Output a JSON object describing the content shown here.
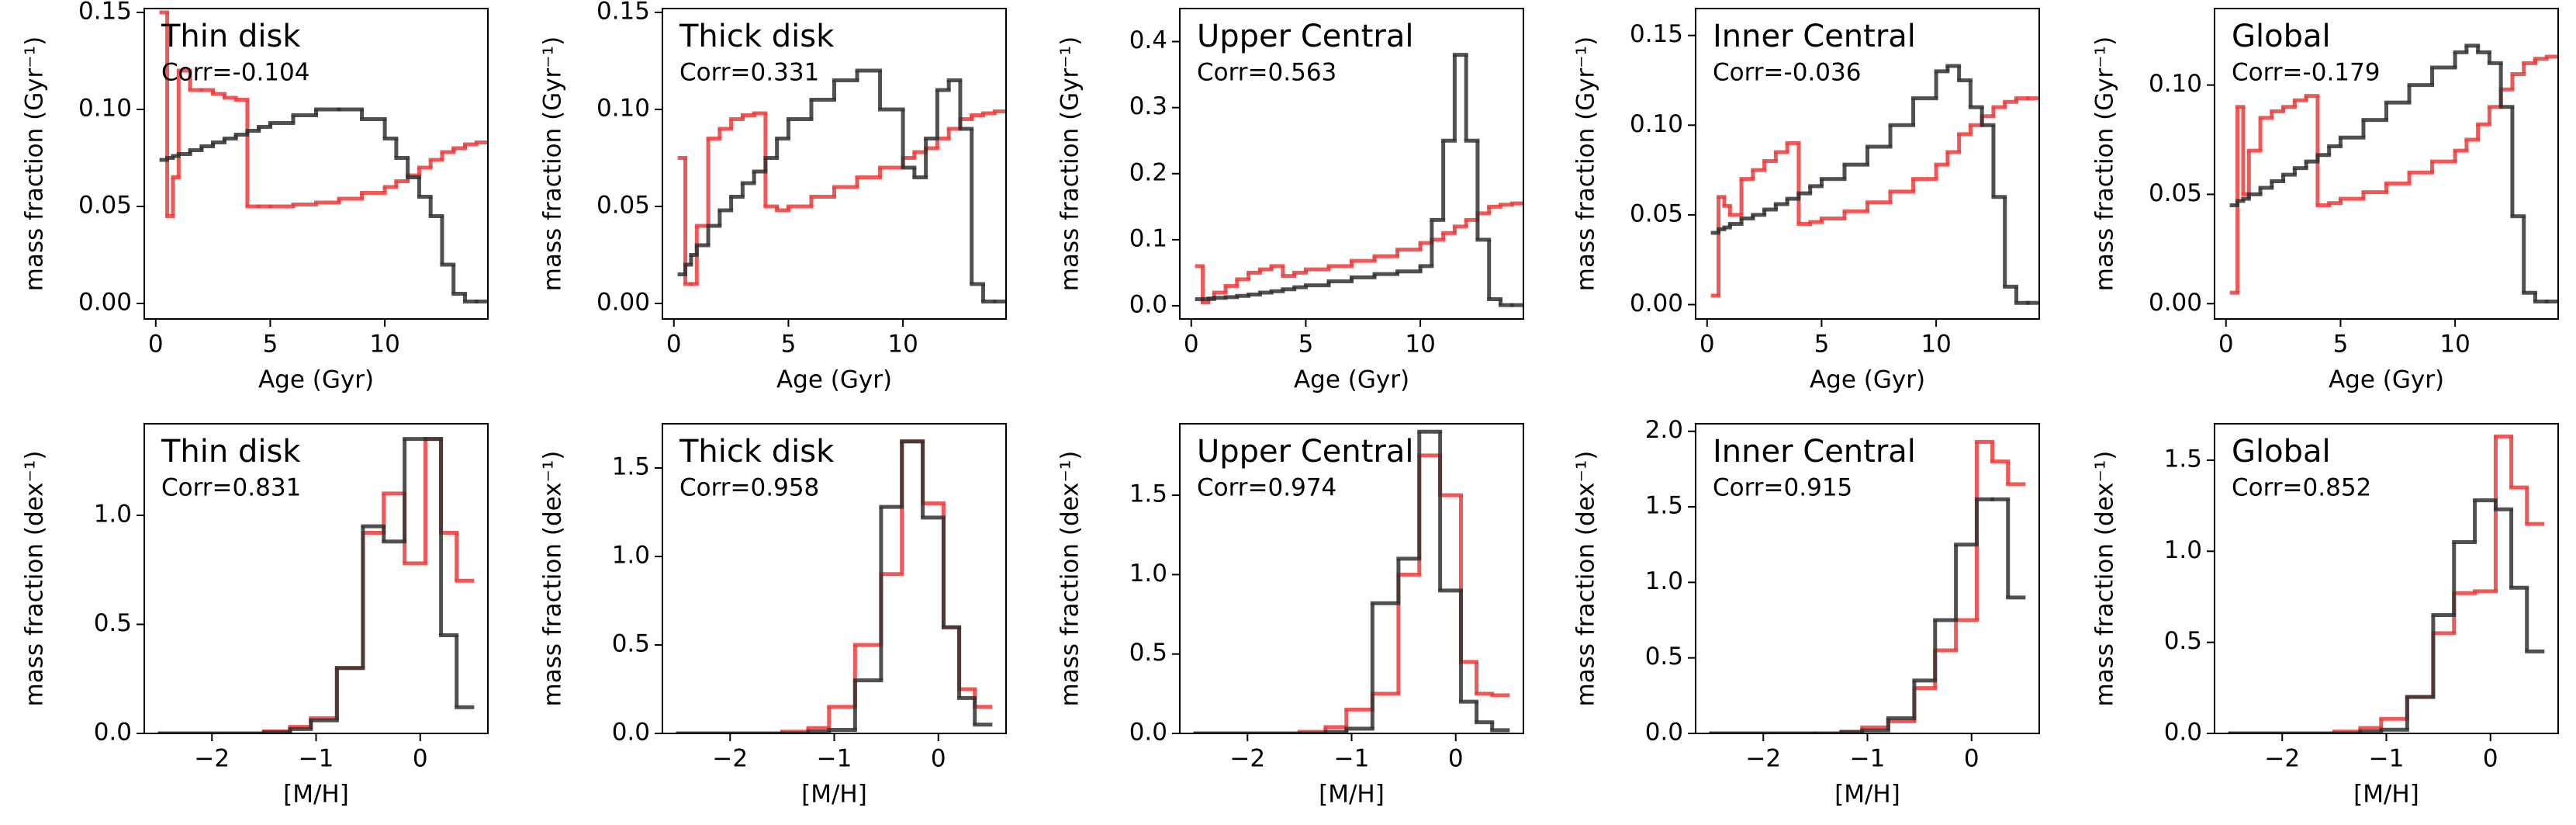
{
  "chart_data": [
    {
      "type": "line",
      "step": true,
      "title": "Thin disk",
      "annotation": "Corr=-0.104",
      "xlabel": "Age (Gyr)",
      "ylabel": "mass fraction (Gyr⁻¹)",
      "x": [
        0.25,
        0.5,
        0.75,
        1,
        1.5,
        2,
        2.5,
        3,
        3.5,
        4,
        4.5,
        5,
        6,
        7,
        8,
        9,
        10,
        10.5,
        11,
        11.5,
        12,
        12.5,
        13,
        13.5,
        14
      ],
      "xlim": [
        -0.5,
        14.5
      ],
      "ylim": [
        -0.008,
        0.152
      ],
      "xticks": [
        0,
        5,
        10
      ],
      "yticks": [
        {
          "value": 0,
          "label": "0.00"
        },
        {
          "value": 0.05,
          "label": "0.05"
        },
        {
          "value": 0.1,
          "label": "0.10"
        },
        {
          "value": 0.15,
          "label": "0.15"
        }
      ],
      "series": [
        {
          "color": "#ee3b3b",
          "values": [
            0.15,
            0.045,
            0.065,
            0.12,
            0.11,
            0.11,
            0.108,
            0.106,
            0.105,
            0.05,
            0.05,
            0.05,
            0.051,
            0.052,
            0.054,
            0.057,
            0.06,
            0.063,
            0.066,
            0.07,
            0.074,
            0.078,
            0.08,
            0.082,
            0.083
          ]
        },
        {
          "color": "#333333",
          "values": [
            0.074,
            0.075,
            0.076,
            0.077,
            0.079,
            0.081,
            0.083,
            0.085,
            0.087,
            0.089,
            0.091,
            0.093,
            0.097,
            0.1,
            0.1,
            0.095,
            0.085,
            0.075,
            0.065,
            0.055,
            0.045,
            0.02,
            0.005,
            0.001,
            0.001
          ]
        }
      ]
    },
    {
      "type": "line",
      "step": true,
      "title": "Thick disk",
      "annotation": "Corr=0.331",
      "xlabel": "Age (Gyr)",
      "ylabel": "mass fraction (Gyr⁻¹)",
      "x": [
        0.25,
        0.5,
        0.75,
        1,
        1.5,
        2,
        2.5,
        3,
        3.5,
        4,
        4.5,
        5,
        6,
        7,
        8,
        9,
        10,
        10.5,
        11,
        11.5,
        12,
        12.5,
        13,
        13.5,
        14
      ],
      "xlim": [
        -0.5,
        14.5
      ],
      "ylim": [
        -0.008,
        0.152
      ],
      "xticks": [
        0,
        5,
        10
      ],
      "yticks": [
        {
          "value": 0,
          "label": "0.00"
        },
        {
          "value": 0.05,
          "label": "0.05"
        },
        {
          "value": 0.1,
          "label": "0.10"
        },
        {
          "value": 0.15,
          "label": "0.15"
        }
      ],
      "series": [
        {
          "color": "#ee3b3b",
          "values": [
            0.075,
            0.01,
            0.01,
            0.04,
            0.085,
            0.09,
            0.095,
            0.097,
            0.098,
            0.05,
            0.048,
            0.05,
            0.055,
            0.06,
            0.065,
            0.07,
            0.075,
            0.078,
            0.08,
            0.085,
            0.09,
            0.095,
            0.097,
            0.098,
            0.099
          ]
        },
        {
          "color": "#333333",
          "values": [
            0.015,
            0.02,
            0.025,
            0.03,
            0.04,
            0.048,
            0.055,
            0.062,
            0.068,
            0.075,
            0.085,
            0.095,
            0.105,
            0.115,
            0.12,
            0.1,
            0.07,
            0.065,
            0.085,
            0.11,
            0.115,
            0.09,
            0.01,
            0.001,
            0.001
          ]
        }
      ]
    },
    {
      "type": "line",
      "step": true,
      "title": "Upper Central",
      "annotation": "Corr=0.563",
      "xlabel": "Age (Gyr)",
      "ylabel": "mass fraction (Gyr⁻¹)",
      "x": [
        0.25,
        0.5,
        0.75,
        1,
        1.5,
        2,
        2.5,
        3,
        3.5,
        4,
        4.5,
        5,
        6,
        7,
        8,
        9,
        10,
        10.5,
        11,
        11.5,
        12,
        12.5,
        13,
        13.5,
        14
      ],
      "xlim": [
        -0.5,
        14.5
      ],
      "ylim": [
        -0.02,
        0.45
      ],
      "xticks": [
        0,
        5,
        10
      ],
      "yticks": [
        {
          "value": 0,
          "label": "0.0"
        },
        0.1,
        0.2,
        0.3,
        0.4
      ],
      "series": [
        {
          "color": "#ee3b3b",
          "values": [
            0.06,
            0.005,
            0.01,
            0.02,
            0.03,
            0.04,
            0.05,
            0.055,
            0.06,
            0.045,
            0.05,
            0.055,
            0.06,
            0.068,
            0.075,
            0.085,
            0.095,
            0.1,
            0.11,
            0.12,
            0.13,
            0.14,
            0.15,
            0.153,
            0.155
          ]
        },
        {
          "color": "#333333",
          "values": [
            0.01,
            0.01,
            0.011,
            0.012,
            0.013,
            0.015,
            0.017,
            0.02,
            0.022,
            0.025,
            0.028,
            0.031,
            0.037,
            0.043,
            0.048,
            0.052,
            0.06,
            0.13,
            0.25,
            0.38,
            0.25,
            0.1,
            0.01,
            0.001,
            0.001
          ]
        }
      ]
    },
    {
      "type": "line",
      "step": true,
      "title": "Inner Central",
      "annotation": "Corr=-0.036",
      "xlabel": "Age (Gyr)",
      "ylabel": "mass fraction (Gyr⁻¹)",
      "x": [
        0.25,
        0.5,
        0.75,
        1,
        1.5,
        2,
        2.5,
        3,
        3.5,
        4,
        4.5,
        5,
        6,
        7,
        8,
        9,
        10,
        10.5,
        11,
        11.5,
        12,
        12.5,
        13,
        13.5,
        14
      ],
      "xlim": [
        -0.5,
        14.5
      ],
      "ylim": [
        -0.008,
        0.165
      ],
      "xticks": [
        0,
        5,
        10
      ],
      "yticks": [
        {
          "value": 0,
          "label": "0.00"
        },
        {
          "value": 0.05,
          "label": "0.05"
        },
        {
          "value": 0.1,
          "label": "0.10"
        },
        {
          "value": 0.15,
          "label": "0.15"
        }
      ],
      "series": [
        {
          "color": "#ee3b3b",
          "values": [
            0.005,
            0.06,
            0.055,
            0.05,
            0.07,
            0.075,
            0.08,
            0.085,
            0.09,
            0.045,
            0.046,
            0.048,
            0.052,
            0.057,
            0.063,
            0.07,
            0.078,
            0.085,
            0.095,
            0.1,
            0.105,
            0.11,
            0.113,
            0.115,
            0.115
          ]
        },
        {
          "color": "#333333",
          "values": [
            0.04,
            0.042,
            0.043,
            0.045,
            0.048,
            0.05,
            0.053,
            0.056,
            0.059,
            0.062,
            0.066,
            0.07,
            0.078,
            0.088,
            0.1,
            0.115,
            0.13,
            0.133,
            0.125,
            0.11,
            0.1,
            0.06,
            0.01,
            0.001,
            0.001
          ]
        }
      ]
    },
    {
      "type": "line",
      "step": true,
      "title": "Global",
      "annotation": "Corr=-0.179",
      "xlabel": "Age (Gyr)",
      "ylabel": "mass fraction (Gyr⁻¹)",
      "x": [
        0.25,
        0.5,
        0.75,
        1,
        1.5,
        2,
        2.5,
        3,
        3.5,
        4,
        4.5,
        5,
        6,
        7,
        8,
        9,
        10,
        10.5,
        11,
        11.5,
        12,
        12.5,
        13,
        13.5,
        14
      ],
      "xlim": [
        -0.5,
        14.5
      ],
      "ylim": [
        -0.007,
        0.135
      ],
      "xticks": [
        0,
        5,
        10
      ],
      "yticks": [
        {
          "value": 0,
          "label": "0.00"
        },
        {
          "value": 0.05,
          "label": "0.05"
        },
        {
          "value": 0.1,
          "label": "0.10"
        }
      ],
      "series": [
        {
          "color": "#ee3b3b",
          "values": [
            0.005,
            0.09,
            0.05,
            0.07,
            0.085,
            0.088,
            0.09,
            0.093,
            0.095,
            0.045,
            0.046,
            0.048,
            0.051,
            0.055,
            0.06,
            0.065,
            0.07,
            0.075,
            0.082,
            0.09,
            0.098,
            0.105,
            0.11,
            0.112,
            0.113
          ]
        },
        {
          "color": "#333333",
          "values": [
            0.045,
            0.047,
            0.048,
            0.05,
            0.053,
            0.056,
            0.059,
            0.062,
            0.065,
            0.068,
            0.072,
            0.076,
            0.084,
            0.092,
            0.1,
            0.108,
            0.115,
            0.118,
            0.115,
            0.11,
            0.09,
            0.04,
            0.005,
            0.001,
            0.001
          ]
        }
      ]
    },
    {
      "type": "line",
      "step": true,
      "title": "Thin disk",
      "annotation": "Corr=0.831",
      "xlabel": "[M/H]",
      "ylabel": "mass fraction (dex⁻¹)",
      "x": [
        -2.5,
        -1.5,
        -1.25,
        -1.05,
        -0.8,
        -0.55,
        -0.35,
        -0.15,
        0.05,
        0.2,
        0.35
      ],
      "xlim": [
        -2.65,
        0.65
      ],
      "ylim": [
        0,
        1.42
      ],
      "xticks": [
        {
          "value": -2,
          "label": "−2"
        },
        {
          "value": -1,
          "label": "−1"
        },
        0
      ],
      "yticks": [
        {
          "value": 0,
          "label": "0.0"
        },
        0.5,
        {
          "value": 1,
          "label": "1.0"
        }
      ],
      "series": [
        {
          "color": "#ee3b3b",
          "values": [
            0,
            0.01,
            0.03,
            0.07,
            0.3,
            0.92,
            1.1,
            0.78,
            1.35,
            0.92,
            0.7
          ]
        },
        {
          "color": "#333333",
          "values": [
            0,
            0.005,
            0.02,
            0.06,
            0.3,
            0.95,
            0.88,
            1.35,
            1.35,
            0.45,
            0.12
          ]
        }
      ]
    },
    {
      "type": "line",
      "step": true,
      "title": "Thick disk",
      "annotation": "Corr=0.958",
      "xlabel": "[M/H]",
      "ylabel": "mass fraction (dex⁻¹)",
      "x": [
        -2.5,
        -1.5,
        -1.25,
        -1.05,
        -0.8,
        -0.55,
        -0.35,
        -0.15,
        0.05,
        0.2,
        0.35
      ],
      "xlim": [
        -2.65,
        0.65
      ],
      "ylim": [
        0,
        1.75
      ],
      "xticks": [
        {
          "value": -2,
          "label": "−2"
        },
        {
          "value": -1,
          "label": "−1"
        },
        0
      ],
      "yticks": [
        {
          "value": 0,
          "label": "0.0"
        },
        0.5,
        {
          "value": 1,
          "label": "1.0"
        },
        1.5
      ],
      "series": [
        {
          "color": "#ee3b3b",
          "values": [
            0,
            0.01,
            0.03,
            0.15,
            0.5,
            0.9,
            1.65,
            1.3,
            0.6,
            0.25,
            0.15
          ]
        },
        {
          "color": "#333333",
          "values": [
            0,
            0,
            0.01,
            0.02,
            0.3,
            1.28,
            1.65,
            1.22,
            0.6,
            0.2,
            0.05
          ]
        }
      ]
    },
    {
      "type": "line",
      "step": true,
      "title": "Upper Central",
      "annotation": "Corr=0.974",
      "xlabel": "[M/H]",
      "ylabel": "mass fraction (dex⁻¹)",
      "x": [
        -2.5,
        -1.5,
        -1.25,
        -1.05,
        -0.8,
        -0.55,
        -0.35,
        -0.15,
        0.05,
        0.2,
        0.35
      ],
      "xlim": [
        -2.65,
        0.65
      ],
      "ylim": [
        0,
        1.95
      ],
      "xticks": [
        {
          "value": -2,
          "label": "−2"
        },
        {
          "value": -1,
          "label": "−1"
        },
        0
      ],
      "yticks": [
        {
          "value": 0,
          "label": "0.0"
        },
        0.5,
        {
          "value": 1,
          "label": "1.0"
        },
        1.5
      ],
      "series": [
        {
          "color": "#ee3b3b",
          "values": [
            0,
            0.01,
            0.04,
            0.15,
            0.25,
            1.0,
            1.75,
            1.5,
            0.45,
            0.25,
            0.24
          ]
        },
        {
          "color": "#333333",
          "values": [
            0,
            0,
            0.01,
            0.03,
            0.82,
            1.1,
            1.9,
            0.9,
            0.2,
            0.07,
            0.02
          ]
        }
      ]
    },
    {
      "type": "line",
      "step": true,
      "title": "Inner Central",
      "annotation": "Corr=0.915",
      "xlabel": "[M/H]",
      "ylabel": "mass fraction (dex⁻¹)",
      "x": [
        -2.5,
        -1.5,
        -1.25,
        -1.05,
        -0.8,
        -0.55,
        -0.35,
        -0.15,
        0.05,
        0.2,
        0.35
      ],
      "xlim": [
        -2.65,
        0.65
      ],
      "ylim": [
        0,
        2.05
      ],
      "xticks": [
        {
          "value": -2,
          "label": "−2"
        },
        {
          "value": -1,
          "label": "−1"
        },
        0
      ],
      "yticks": [
        {
          "value": 0,
          "label": "0.0"
        },
        0.5,
        {
          "value": 1,
          "label": "1.0"
        },
        1.5,
        {
          "value": 2,
          "label": "2.0"
        }
      ],
      "series": [
        {
          "color": "#ee3b3b",
          "values": [
            0,
            0,
            0.01,
            0.04,
            0.08,
            0.3,
            0.55,
            0.75,
            1.93,
            1.8,
            1.65
          ]
        },
        {
          "color": "#333333",
          "values": [
            0,
            0,
            0.01,
            0.02,
            0.1,
            0.35,
            0.75,
            1.25,
            1.55,
            1.55,
            0.9
          ]
        }
      ]
    },
    {
      "type": "line",
      "step": true,
      "title": "Global",
      "annotation": "Corr=0.852",
      "xlabel": "[M/H]",
      "ylabel": "mass fraction (dex⁻¹)",
      "x": [
        -2.5,
        -1.5,
        -1.25,
        -1.05,
        -0.8,
        -0.55,
        -0.35,
        -0.15,
        0.05,
        0.2,
        0.35
      ],
      "xlim": [
        -2.65,
        0.65
      ],
      "ylim": [
        0,
        1.7
      ],
      "xticks": [
        {
          "value": -2,
          "label": "−2"
        },
        {
          "value": -1,
          "label": "−1"
        },
        0
      ],
      "yticks": [
        {
          "value": 0,
          "label": "0.0"
        },
        0.5,
        {
          "value": 1,
          "label": "1.0"
        },
        1.5
      ],
      "series": [
        {
          "color": "#ee3b3b",
          "values": [
            0,
            0.01,
            0.03,
            0.08,
            0.2,
            0.55,
            0.77,
            0.78,
            1.63,
            1.35,
            1.15
          ]
        },
        {
          "color": "#333333",
          "values": [
            0,
            0,
            0.01,
            0.02,
            0.2,
            0.65,
            1.05,
            1.28,
            1.23,
            0.8,
            0.45
          ]
        }
      ]
    }
  ]
}
